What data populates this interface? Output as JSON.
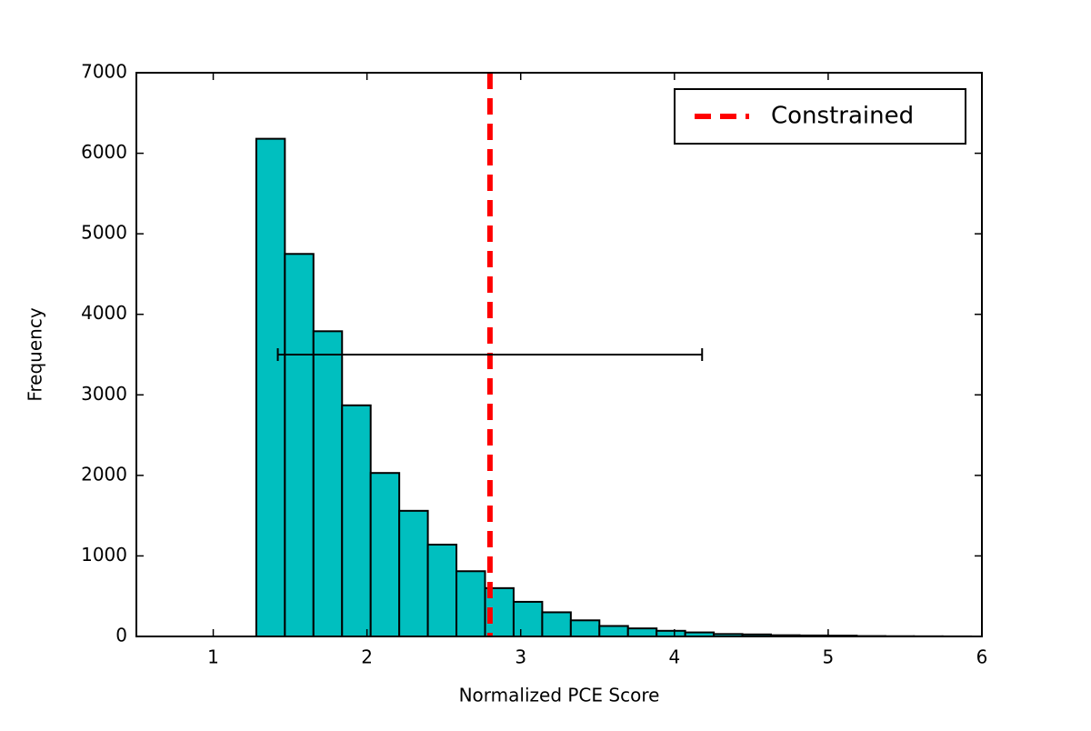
{
  "chart_data": {
    "type": "histogram",
    "xlabel": "Normalized PCE Score",
    "ylabel": "Frequency",
    "bins": [
      1.28,
      1.466,
      1.652,
      1.838,
      2.024,
      2.21,
      2.396,
      2.582,
      2.768,
      2.954,
      3.14,
      3.326,
      3.512,
      3.698,
      3.884,
      4.07,
      4.256,
      4.442,
      4.628,
      4.814,
      5.0,
      5.186,
      5.372,
      5.558,
      5.744,
      5.93
    ],
    "values": [
      6180,
      4750,
      3790,
      2870,
      2030,
      1560,
      1140,
      810,
      600,
      430,
      300,
      200,
      130,
      100,
      70,
      50,
      30,
      25,
      15,
      12,
      10,
      5,
      3,
      2,
      1
    ],
    "color": "#00bfbf",
    "vlines": [
      {
        "name": "Constrained",
        "x": 2.8,
        "color": "#ff0000"
      }
    ],
    "errorbar": {
      "x": 2.8,
      "y": 3500,
      "xerr": 1.38,
      "color": "#000000"
    },
    "xlim": [
      0.5,
      6
    ],
    "ylim": [
      0,
      7000
    ],
    "xticks": [
      1,
      2,
      3,
      4,
      5,
      6
    ],
    "yticks": [
      0,
      1000,
      2000,
      3000,
      4000,
      5000,
      6000,
      7000
    ],
    "legend": "upper right"
  }
}
